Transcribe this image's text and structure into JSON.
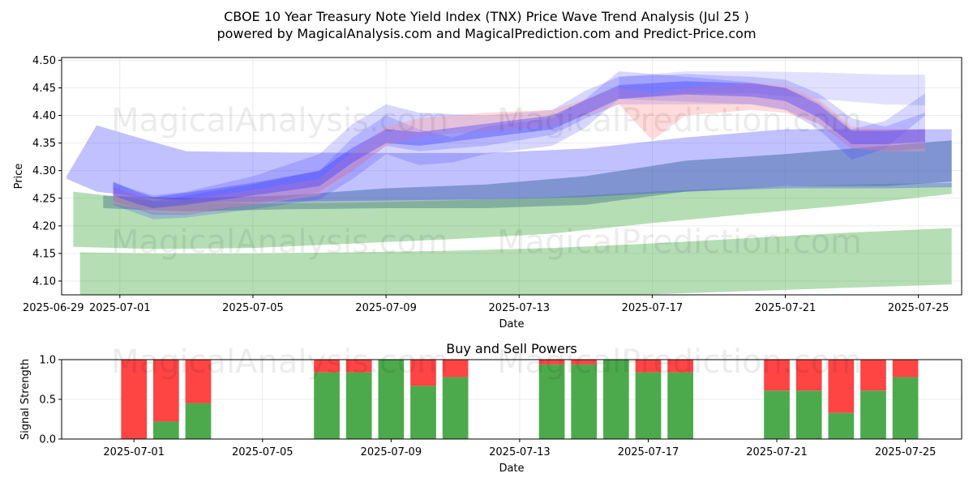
{
  "page": {
    "title_line1": "CBOE 10 Year Treasury Note Yield Index (TNX) Price Wave Trend Analysis (Jul 25 )",
    "title_line2": "powered by MagicalAnalysis.com and MagicalPrediction.com and Predict-Price.com",
    "watermarks": [
      "MagicalAnalysis.com",
      "MagicalPrediction.com"
    ]
  },
  "colors": {
    "green": "#2ca02c",
    "blue": "#3333ff",
    "red_band": "#ff9999",
    "buy": "#4caa4c",
    "sell": "#ff4444",
    "teal": "#5a8a8a"
  },
  "chart_data": [
    {
      "type": "area",
      "title": "",
      "xlabel": "Date",
      "ylabel": "Price",
      "ylim": [
        4.075,
        4.505
      ],
      "xlim": [
        -0.75,
        26.3
      ],
      "x_start_date": "2025-06-30",
      "x_ticks": [
        {
          "x": -1,
          "label": "2025-06-29"
        },
        {
          "x": 1,
          "label": "2025-07-01"
        },
        {
          "x": 5,
          "label": "2025-07-05"
        },
        {
          "x": 9,
          "label": "2025-07-09"
        },
        {
          "x": 13,
          "label": "2025-07-13"
        },
        {
          "x": 17,
          "label": "2025-07-17"
        },
        {
          "x": 21,
          "label": "2025-07-21"
        },
        {
          "x": 25,
          "label": "2025-07-25"
        }
      ],
      "y_ticks": [
        4.1,
        4.15,
        4.2,
        4.25,
        4.3,
        4.35,
        4.4,
        4.45,
        4.5
      ],
      "y_tick_labels": [
        "4.10",
        "4.15",
        "4.20",
        "4.25",
        "4.30",
        "4.35",
        "4.40",
        "4.45",
        "4.50"
      ],
      "grid": true,
      "series": [
        {
          "name": "green_band_lower",
          "kind": "band",
          "color": "green",
          "alpha": 0.35,
          "x": [
            -0.2,
            2,
            5,
            8,
            11,
            14,
            17,
            20,
            23,
            26
          ],
          "upper": [
            4.152,
            4.15,
            4.15,
            4.152,
            4.155,
            4.16,
            4.168,
            4.178,
            4.188,
            4.196
          ],
          "lower": [
            4.07,
            4.068,
            4.068,
            4.068,
            4.07,
            4.072,
            4.076,
            4.082,
            4.088,
            4.094
          ]
        },
        {
          "name": "green_band_upper",
          "kind": "band",
          "color": "green",
          "alpha": 0.35,
          "x": [
            -0.4,
            2,
            5,
            8,
            11,
            14,
            17,
            20,
            23,
            26
          ],
          "upper": [
            4.262,
            4.245,
            4.24,
            4.242,
            4.246,
            4.252,
            4.262,
            4.27,
            4.275,
            4.278
          ],
          "lower": [
            4.162,
            4.158,
            4.16,
            4.168,
            4.176,
            4.186,
            4.205,
            4.222,
            4.238,
            4.258
          ]
        },
        {
          "name": "teal_band",
          "kind": "band",
          "color": "teal",
          "alpha": 0.55,
          "x": [
            0.5,
            3,
            6,
            9,
            12,
            15,
            18,
            21,
            24,
            26
          ],
          "upper": [
            4.255,
            4.25,
            4.255,
            4.268,
            4.275,
            4.29,
            4.318,
            4.33,
            4.345,
            4.355
          ],
          "lower": [
            4.232,
            4.226,
            4.23,
            4.232,
            4.232,
            4.238,
            4.262,
            4.272,
            4.272,
            4.28
          ]
        },
        {
          "name": "blue_wide_band",
          "kind": "band",
          "color": "blue",
          "alpha": 0.3,
          "x": [
            -0.6,
            0.3,
            2,
            3,
            6,
            9,
            12,
            15,
            18,
            21,
            24,
            26
          ],
          "upper": [
            4.29,
            4.382,
            4.352,
            4.335,
            4.333,
            4.332,
            4.332,
            4.34,
            4.36,
            4.375,
            4.375,
            4.375
          ],
          "lower": [
            4.285,
            4.262,
            4.25,
            4.243,
            4.244,
            4.246,
            4.248,
            4.252,
            4.262,
            4.268,
            4.268,
            4.27
          ]
        },
        {
          "name": "blue_wave_1",
          "kind": "band",
          "color": "blue",
          "alpha": 0.2,
          "x": [
            0.8,
            2,
            3,
            5,
            7,
            8,
            9,
            10,
            12,
            14,
            15,
            16,
            18,
            20,
            21,
            22,
            23,
            24,
            25.2
          ],
          "upper": [
            4.278,
            4.255,
            4.262,
            4.29,
            4.33,
            4.385,
            4.42,
            4.405,
            4.4,
            4.41,
            4.445,
            4.47,
            4.475,
            4.47,
            4.465,
            4.44,
            4.395,
            4.38,
            4.405
          ],
          "lower": [
            4.245,
            4.22,
            4.22,
            4.238,
            4.262,
            4.3,
            4.345,
            4.335,
            4.345,
            4.365,
            4.395,
            4.42,
            4.42,
            4.42,
            4.41,
            4.385,
            4.34,
            4.335,
            4.34
          ]
        },
        {
          "name": "blue_wave_2",
          "kind": "band",
          "color": "blue",
          "alpha": 0.2,
          "x": [
            0.8,
            2,
            3,
            5,
            7,
            8,
            9,
            10,
            11,
            12,
            14,
            15,
            16,
            18,
            20,
            21,
            22,
            23,
            24,
            25.2
          ],
          "upper": [
            4.27,
            4.245,
            4.255,
            4.275,
            4.3,
            4.36,
            4.4,
            4.375,
            4.36,
            4.38,
            4.395,
            4.43,
            4.48,
            4.47,
            4.46,
            4.45,
            4.425,
            4.375,
            4.39,
            4.44
          ],
          "lower": [
            4.238,
            4.212,
            4.215,
            4.23,
            4.248,
            4.285,
            4.33,
            4.31,
            4.315,
            4.33,
            4.345,
            4.378,
            4.43,
            4.425,
            4.42,
            4.41,
            4.375,
            4.32,
            4.34,
            4.4
          ]
        },
        {
          "name": "blue_upper_band",
          "kind": "band",
          "color": "blue",
          "alpha": 0.15,
          "x": [
            16,
            18,
            20,
            22,
            24,
            25.2
          ],
          "upper": [
            4.47,
            4.48,
            4.48,
            4.478,
            4.474,
            4.474
          ],
          "lower": [
            4.43,
            4.44,
            4.44,
            4.43,
            4.42,
            4.418
          ]
        },
        {
          "name": "red_wave",
          "kind": "band",
          "color": "red_band",
          "alpha": 0.35,
          "x": [
            0.8,
            2,
            3,
            5,
            7,
            8,
            9,
            10,
            12,
            14,
            15,
            16,
            17,
            18,
            20,
            21,
            22,
            23,
            24,
            25.2
          ],
          "upper": [
            4.268,
            4.25,
            4.248,
            4.265,
            4.285,
            4.335,
            4.38,
            4.395,
            4.405,
            4.41,
            4.43,
            4.45,
            4.44,
            4.45,
            4.46,
            4.455,
            4.43,
            4.38,
            4.375,
            4.375
          ],
          "lower": [
            4.24,
            4.225,
            4.222,
            4.238,
            4.255,
            4.3,
            4.345,
            4.362,
            4.372,
            4.38,
            4.4,
            4.42,
            4.355,
            4.4,
            4.41,
            4.405,
            4.385,
            4.34,
            4.335,
            4.335
          ]
        },
        {
          "name": "purple_core",
          "kind": "band",
          "color": "blue",
          "alpha": 0.35,
          "x": [
            0.8,
            1.5,
            2,
            3,
            5,
            7,
            8,
            9,
            10,
            12,
            14,
            15,
            16,
            18,
            20,
            21,
            22,
            23,
            24,
            25.2
          ],
          "upper": [
            4.28,
            4.262,
            4.252,
            4.26,
            4.278,
            4.3,
            4.342,
            4.375,
            4.37,
            4.385,
            4.4,
            4.428,
            4.455,
            4.462,
            4.458,
            4.45,
            4.42,
            4.372,
            4.372,
            4.375
          ],
          "lower": [
            4.255,
            4.24,
            4.232,
            4.238,
            4.255,
            4.272,
            4.315,
            4.35,
            4.345,
            4.36,
            4.375,
            4.402,
            4.43,
            4.438,
            4.434,
            4.426,
            4.396,
            4.348,
            4.348,
            4.352
          ]
        }
      ]
    },
    {
      "type": "bar",
      "title": "Buy and Sell Powers",
      "xlabel": "Date",
      "ylabel": "Signal Strength",
      "ylim": [
        0,
        1.0
      ],
      "xlim": [
        -1.25,
        26.75
      ],
      "x_start_date": "2025-06-30",
      "x_ticks": [
        {
          "x": 1,
          "label": "2025-07-01"
        },
        {
          "x": 5,
          "label": "2025-07-05"
        },
        {
          "x": 9,
          "label": "2025-07-09"
        },
        {
          "x": 13,
          "label": "2025-07-13"
        },
        {
          "x": 17,
          "label": "2025-07-17"
        },
        {
          "x": 21,
          "label": "2025-07-21"
        },
        {
          "x": 25,
          "label": "2025-07-25"
        }
      ],
      "y_ticks": [
        0.0,
        0.5,
        1.0
      ],
      "y_tick_labels": [
        "0.0",
        "0.5",
        "1.0"
      ],
      "grid": true,
      "bars": [
        {
          "x": 1,
          "buy": 0.0,
          "sell": 1.0
        },
        {
          "x": 2,
          "buy": 0.22,
          "sell": 0.78
        },
        {
          "x": 3,
          "buy": 0.45,
          "sell": 0.55
        },
        {
          "x": 7,
          "buy": 0.84,
          "sell": 0.16
        },
        {
          "x": 8,
          "buy": 0.84,
          "sell": 0.16
        },
        {
          "x": 9,
          "buy": 1.0,
          "sell": 0.0
        },
        {
          "x": 10,
          "buy": 0.67,
          "sell": 0.33
        },
        {
          "x": 11,
          "buy": 0.78,
          "sell": 0.22
        },
        {
          "x": 14,
          "buy": 0.94,
          "sell": 0.06
        },
        {
          "x": 15,
          "buy": 0.94,
          "sell": 0.06
        },
        {
          "x": 16,
          "buy": 1.0,
          "sell": 0.0
        },
        {
          "x": 17,
          "buy": 0.84,
          "sell": 0.16
        },
        {
          "x": 18,
          "buy": 0.84,
          "sell": 0.16
        },
        {
          "x": 21,
          "buy": 0.61,
          "sell": 0.39
        },
        {
          "x": 22,
          "buy": 0.61,
          "sell": 0.39
        },
        {
          "x": 23,
          "buy": 0.33,
          "sell": 0.67
        },
        {
          "x": 24,
          "buy": 0.61,
          "sell": 0.39
        },
        {
          "x": 25,
          "buy": 0.78,
          "sell": 0.22
        }
      ]
    }
  ]
}
